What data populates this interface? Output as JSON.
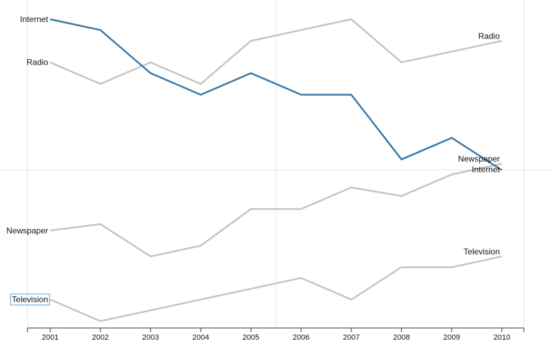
{
  "chart_data": {
    "type": "line",
    "subtype": "slope-rank",
    "title": "",
    "xlabel": "",
    "ylabel": "",
    "x": [
      "2001",
      "2002",
      "2003",
      "2004",
      "2005",
      "2006",
      "2007",
      "2008",
      "2009",
      "2010"
    ],
    "grid": true,
    "legend": "none",
    "highlight_color": "#3a78a6",
    "muted_color": "#c4c4c4",
    "highlight_series": "Internet",
    "focused_label": "Television",
    "series": [
      {
        "name": "Internet",
        "values": [
          9.0,
          8.5,
          6.5,
          5.5,
          6.5,
          5.5,
          5.5,
          2.5,
          3.5,
          2.0
        ]
      },
      {
        "name": "Radio",
        "values": [
          7.0,
          6.0,
          7.0,
          6.0,
          8.0,
          8.5,
          9.0,
          7.0,
          7.5,
          8.0
        ]
      },
      {
        "name": "Newspaper",
        "values": [
          -0.8,
          -0.5,
          -2.0,
          -1.5,
          0.2,
          0.2,
          1.2,
          0.8,
          1.8,
          2.3
        ]
      },
      {
        "name": "Television",
        "values": [
          -4.0,
          -5.0,
          -4.5,
          -4.0,
          -3.5,
          -3.0,
          -4.0,
          -2.5,
          -2.5,
          -2.0
        ]
      }
    ],
    "ylim": [
      -5.0,
      9.0
    ]
  }
}
